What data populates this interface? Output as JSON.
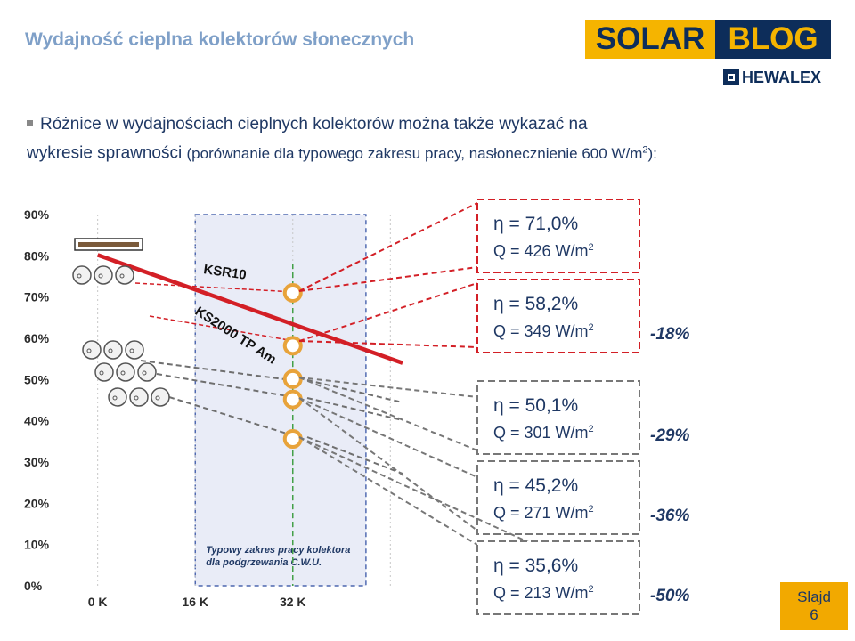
{
  "header": {
    "title": "Wydajność cieplna kolektorów słonecznych",
    "logo_solar_part1": "SOLAR",
    "logo_solar_part2": "BLOG",
    "logo_hewalex": "HEWALEX"
  },
  "bullet": {
    "main_line1": "Różnice w wydajnościach cieplnych kolektorów można także wykazać na",
    "main_line2": "wykresie sprawności",
    "small_part": "(porównanie dla typowego zakresu pracy, nasłonecznienie 600 W/m",
    "sup": "2",
    "end": "):"
  },
  "colors": {
    "accent_red": "#d31f26",
    "gold": "#e8a33a",
    "navy": "#1f3864",
    "green": "#43a047",
    "dashed_gray": "#7a7a7a"
  },
  "chart_data": {
    "type": "line",
    "y_tick_labels": [
      "90%",
      "80%",
      "70%",
      "60%",
      "50%",
      "40%",
      "30%",
      "20%",
      "10%",
      "0%"
    ],
    "y_ticks": [
      90,
      80,
      70,
      60,
      50,
      40,
      30,
      20,
      10,
      0
    ],
    "ylim": [
      0,
      90
    ],
    "x_tick_labels": [
      "0 K",
      "16 K",
      "32 K"
    ],
    "x_ticks": [
      0,
      16,
      32
    ],
    "xlim": [
      -5.5,
      50
    ],
    "series": [
      {
        "name": "KSR10",
        "x": [
          0,
          50
        ],
        "y": [
          80.2,
          54
        ]
      },
      {
        "name": "KS2000 TP Am",
        "x": [
          0,
          50
        ],
        "y": [
          80.2,
          54
        ]
      }
    ],
    "range_band": {
      "x": [
        16,
        44
      ],
      "label_line1": "Typowy zakres pracy kolektora",
      "label_line2": "dla podgrzewania C.W.U."
    },
    "marker_x": 32,
    "points": [
      {
        "x": 32,
        "y": 71.0
      },
      {
        "x": 32,
        "y": 58.2
      },
      {
        "x": 32,
        "y": 50.1
      },
      {
        "x": 32,
        "y": 45.2
      },
      {
        "x": 32,
        "y": 35.6
      }
    ],
    "callouts": [
      {
        "eta": "η = 71,0%",
        "q": "Q = 426 W/m",
        "pct": ""
      },
      {
        "eta": "η = 58,2%",
        "q": "Q = 349 W/m",
        "pct": "-18%"
      },
      {
        "eta": "η = 50,1%",
        "q": "Q = 301 W/m",
        "pct": "-29%"
      },
      {
        "eta": "η = 45,2%",
        "q": "Q = 271 W/m",
        "pct": "-36%"
      },
      {
        "eta": "η = 35,6%",
        "q": "Q = 213 W/m",
        "pct": "-50%"
      }
    ],
    "q_sup": "2"
  },
  "slide": {
    "label": "Slajd",
    "number": "6"
  }
}
